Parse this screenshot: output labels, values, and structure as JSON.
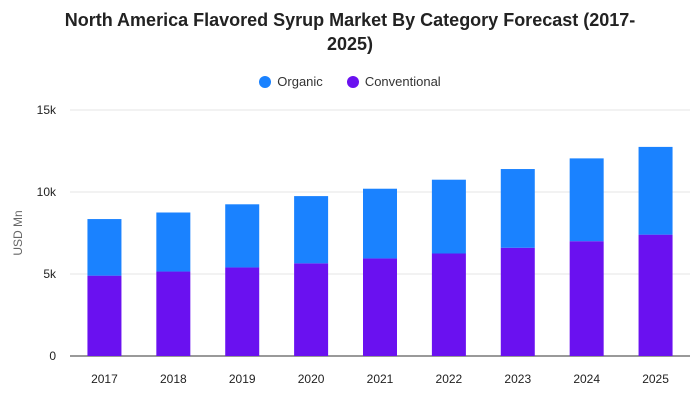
{
  "chart_data": {
    "type": "bar",
    "stacked": true,
    "title_line1": "North America Flavored Syrup Market By Category Forecast (2017-",
    "title_line2": "2025)",
    "ylabel": "USD Mn",
    "categories": [
      "2017",
      "2018",
      "2019",
      "2020",
      "2021",
      "2022",
      "2023",
      "2024",
      "2025"
    ],
    "series": [
      {
        "name": "Conventional",
        "color": "#6a11f0",
        "values": [
          4900,
          5150,
          5400,
          5650,
          5950,
          6250,
          6600,
          7000,
          7400
        ]
      },
      {
        "name": "Organic",
        "color": "#1a82ff",
        "values": [
          3450,
          3600,
          3850,
          4100,
          4250,
          4500,
          4800,
          5050,
          5350
        ]
      }
    ],
    "ylim": [
      0,
      15000
    ],
    "yticks": [
      {
        "value": 0,
        "label": "0"
      },
      {
        "value": 5000,
        "label": "5k"
      },
      {
        "value": 10000,
        "label": "10k"
      },
      {
        "value": 15000,
        "label": "15k"
      }
    ],
    "grid": true,
    "legend_position": "top"
  },
  "legend": [
    {
      "label": "Organic",
      "color": "#1a82ff"
    },
    {
      "label": "Conventional",
      "color": "#6a11f0"
    }
  ]
}
